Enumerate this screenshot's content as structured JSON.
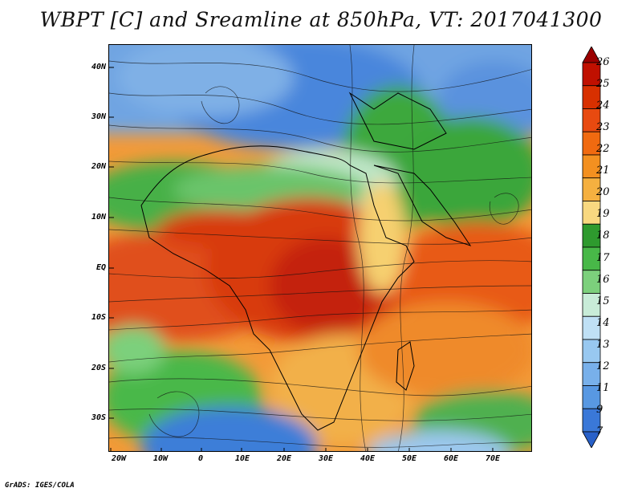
{
  "title": "WBPT [C] and Sreamline at 850hPa, VT: 2017041300",
  "footer": "GrADS: IGES/COLA",
  "lat_labels": [
    "40N",
    "30N",
    "20N",
    "10N",
    "EQ",
    "10S",
    "20S",
    "30S"
  ],
  "lon_labels": [
    "20W",
    "10W",
    "0",
    "10E",
    "20E",
    "30E",
    "40E",
    "50E",
    "60E",
    "70E"
  ],
  "colorbar": {
    "levels": [
      "26",
      "25",
      "24",
      "23",
      "22",
      "21",
      "20",
      "19",
      "18",
      "17",
      "16",
      "15",
      "14",
      "13",
      "12",
      "11",
      "9",
      "7"
    ],
    "colors": [
      "#9b0000",
      "#c01000",
      "#d83000",
      "#e84a10",
      "#f06a10",
      "#f39020",
      "#f5b040",
      "#f8d880",
      "#2e9a2e",
      "#48b848",
      "#7cd07c",
      "#c8ecd8",
      "#bfe0f5",
      "#98c8f0",
      "#78b0ea",
      "#5898e2",
      "#3a78d8",
      "#2860c8"
    ]
  }
}
